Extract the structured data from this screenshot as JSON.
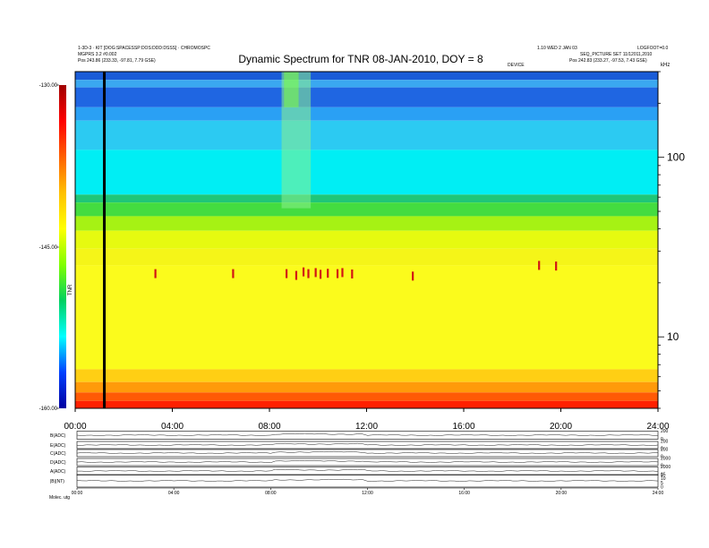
{
  "header": {
    "left_line1": "1-3D-3 · KIT [DOG:SPACESSP:DOS:DDD:DSSS] · CHROMOSPC",
    "left_line2": "MGPRS 3.2 #0.002",
    "left_line3": "Pos  243.86 (233.33, -97.81, 7.79 GSE)",
    "right_line1": "1.10 WED 2 JAN 03",
    "right_line1b": "LOGFOOT=0.0",
    "right_line2": "SEQ_PICTURE SET 11/12011,2010",
    "right_line3": "Pos  242.83 (233.27, -97.53, 7.43 GSE)",
    "mid_label": "DEVICE"
  },
  "chart_data": [
    {
      "type": "heatmap",
      "title": "Dynamic Spectrum for TNR 08-JAN-2010, DOY = 8",
      "xlabel": "",
      "ylabel": "",
      "x_ticks": [
        "00:00",
        "04:00",
        "08:00",
        "12:00",
        "16:00",
        "20:00",
        "24:00"
      ],
      "x_range_hours": [
        0,
        24
      ],
      "y_scale": "log",
      "y_range": [
        4,
        300
      ],
      "y_ticks": [
        10,
        100
      ],
      "y_units_label": "kHz",
      "colorbar": {
        "ticks": [
          "-130.00",
          "-145.00",
          "-160.00"
        ],
        "range": [
          -160,
          -130
        ],
        "label": "TNR",
        "stops": [
          "#0000a0",
          "#0040ff",
          "#00ffff",
          "#00d060",
          "#80ff00",
          "#ffff00",
          "#ffc000",
          "#ff6000",
          "#ff0000",
          "#a00000"
        ]
      },
      "bands": [
        {
          "from": 300,
          "to": 270,
          "color": "#1a5cd8"
        },
        {
          "from": 270,
          "to": 245,
          "color": "#3aa8f0"
        },
        {
          "from": 245,
          "to": 190,
          "color": "#1f66e2"
        },
        {
          "from": 190,
          "to": 160,
          "color": "#2aa0f4"
        },
        {
          "from": 160,
          "to": 110,
          "color": "#2ccaf2"
        },
        {
          "from": 110,
          "to": 62,
          "color": "#00eef4"
        },
        {
          "from": 62,
          "to": 56,
          "color": "#1fc678"
        },
        {
          "from": 56,
          "to": 47,
          "color": "#44dc40"
        },
        {
          "from": 47,
          "to": 39,
          "color": "#a6f214"
        },
        {
          "from": 39,
          "to": 31,
          "color": "#e6fa10"
        },
        {
          "from": 31,
          "to": 25,
          "color": "#f5f518"
        },
        {
          "from": 25,
          "to": 6.6,
          "color": "#fbfb1c"
        },
        {
          "from": 6.6,
          "to": 5.6,
          "color": "#ffcf14"
        },
        {
          "from": 5.6,
          "to": 4.9,
          "color": "#ff9a0a"
        },
        {
          "from": 4.9,
          "to": 4.4,
          "color": "#ff5a05"
        },
        {
          "from": 4.4,
          "to": 4.0,
          "color": "#ff2000"
        }
      ],
      "events": [
        {
          "t_start": 8.5,
          "t_end": 9.7,
          "f_low": 52,
          "f_high": 300,
          "color": "#8cf08c"
        },
        {
          "t_start": 8.6,
          "t_end": 9.2,
          "f_low": 190,
          "f_high": 300,
          "color": "#7cff40"
        }
      ],
      "marker_line_hours": 1.2,
      "emission_spots": [
        {
          "t": 3.3,
          "f": 22.5
        },
        {
          "t": 6.5,
          "f": 22.5
        },
        {
          "t": 8.7,
          "f": 22.5
        },
        {
          "t": 9.1,
          "f": 22.0
        },
        {
          "t": 9.4,
          "f": 23.0
        },
        {
          "t": 9.6,
          "f": 22.5
        },
        {
          "t": 9.9,
          "f": 22.8
        },
        {
          "t": 10.1,
          "f": 22.3
        },
        {
          "t": 10.4,
          "f": 22.6
        },
        {
          "t": 10.8,
          "f": 22.5
        },
        {
          "t": 11.0,
          "f": 22.8
        },
        {
          "t": 11.4,
          "f": 22.4
        },
        {
          "t": 13.9,
          "f": 21.8
        },
        {
          "t": 19.1,
          "f": 25.0
        },
        {
          "t": 19.8,
          "f": 24.8
        }
      ]
    },
    {
      "type": "line",
      "title": "",
      "x_ticks": [
        "00:00",
        "04:00",
        "08:00",
        "12:00",
        "16:00",
        "20:00",
        "24:00"
      ],
      "rows": [
        {
          "name": "B(ADC)",
          "right_ticks": [
            "200",
            "0"
          ]
        },
        {
          "name": "E(ADC)",
          "right_ticks": [
            "200",
            "0"
          ]
        },
        {
          "name": "C(ADC)",
          "right_ticks": [
            "200",
            "0"
          ]
        },
        {
          "name": "D(ADC)",
          "right_ticks": [
            "2000",
            "0"
          ]
        },
        {
          "name": "A(ADC)",
          "right_ticks": [
            "2000",
            "0"
          ]
        },
        {
          "name": "|B|(NT)",
          "right_ticks": [
            "15",
            "10",
            "5",
            "0"
          ]
        }
      ],
      "footer_left": "Molec.  utg"
    }
  ]
}
